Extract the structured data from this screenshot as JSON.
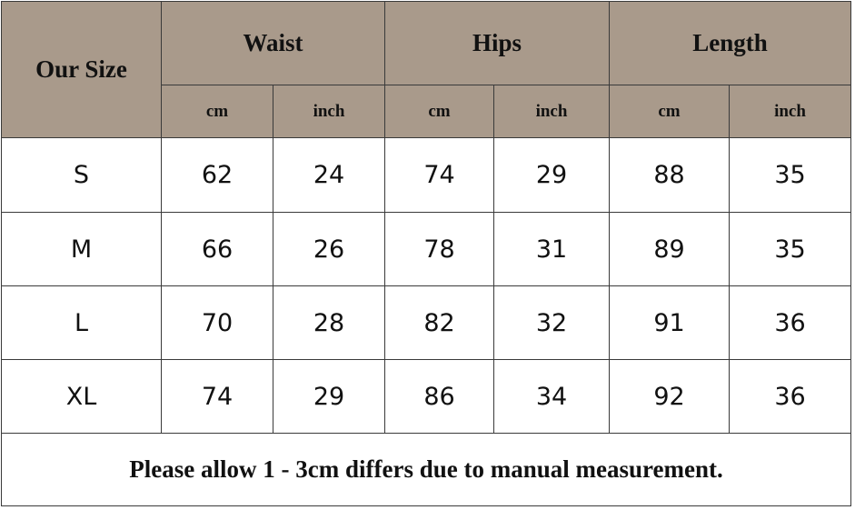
{
  "table": {
    "size_header": "Our Size",
    "groups": [
      {
        "label": "Waist",
        "units": [
          "cm",
          "inch"
        ]
      },
      {
        "label": "Hips",
        "units": [
          "cm",
          "inch"
        ]
      },
      {
        "label": "Length",
        "units": [
          "cm",
          "inch"
        ]
      }
    ],
    "rows": [
      [
        "S",
        62,
        24,
        74,
        29,
        88,
        35
      ],
      [
        "M",
        66,
        26,
        78,
        31,
        89,
        35
      ],
      [
        "L",
        70,
        28,
        82,
        32,
        91,
        36
      ],
      [
        "XL",
        74,
        29,
        86,
        34,
        92,
        36
      ]
    ],
    "note": "Please allow 1 - 3cm differs due to manual measurement."
  }
}
